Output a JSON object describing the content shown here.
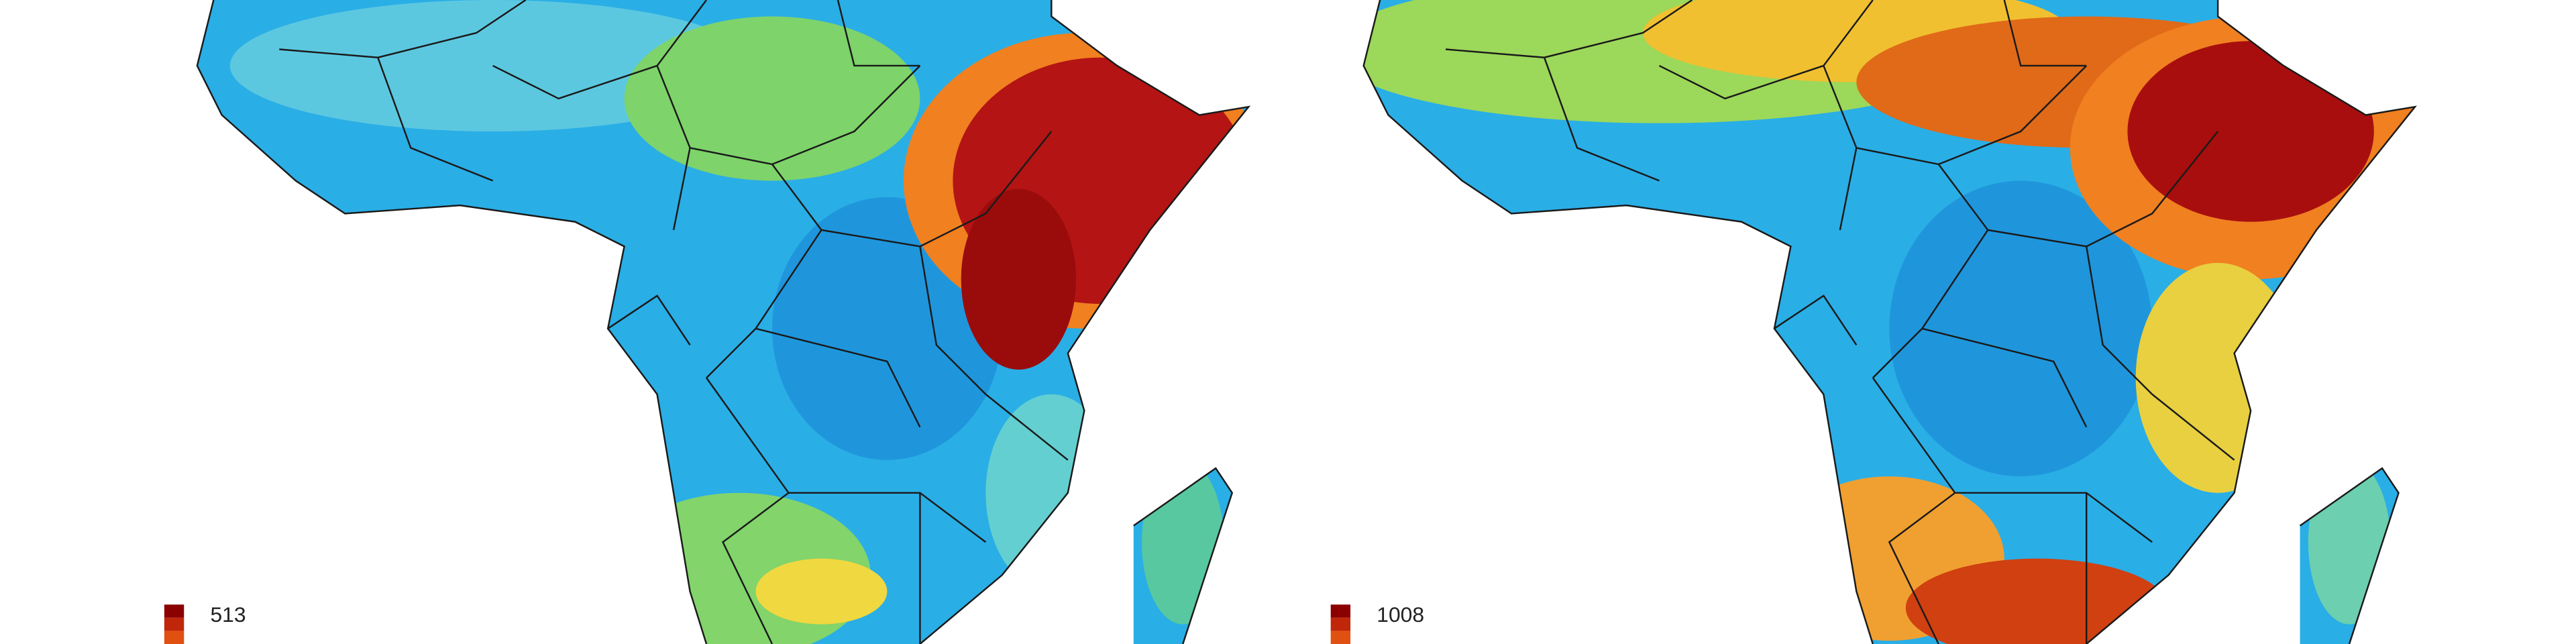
{
  "maps": [
    {
      "legend_max": 513
    },
    {
      "legend_max": 1008
    }
  ]
}
